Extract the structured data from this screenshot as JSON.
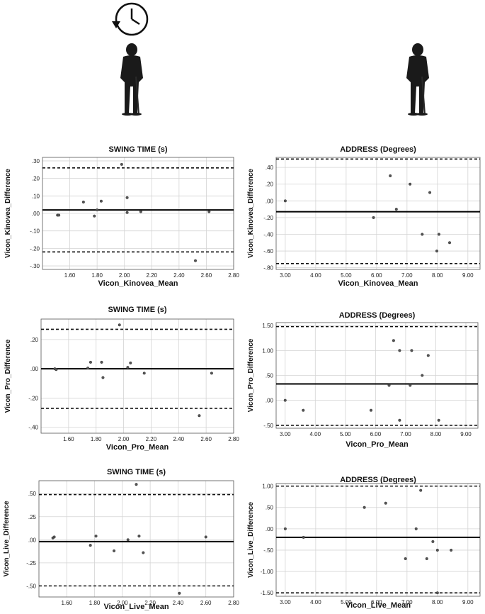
{
  "header": {
    "icons": [
      "clock-rewind-icon",
      "golfer-address-icon",
      "golfer-address-icon"
    ]
  },
  "chart_data": [
    {
      "type": "scatter",
      "title": "SWING TIME (s)",
      "xlabel": "Vicon_Kinovea_Mean",
      "ylabel": "Vicon_Kinovea_Difference",
      "xlim": [
        1.4,
        2.8
      ],
      "ylim": [
        -0.32,
        0.32
      ],
      "xticks": [
        1.6,
        1.8,
        2.0,
        2.2,
        2.4,
        2.6,
        2.8
      ],
      "xtick_labels": [
        "1.60",
        "1.80",
        "2.00",
        "2.20",
        "2.40",
        "2.60",
        "2.80"
      ],
      "yticks": [
        0.3,
        0.2,
        0.1,
        0.0,
        -0.1,
        -0.2,
        -0.3
      ],
      "ytick_labels": [
        ".30",
        ".20",
        ".10",
        ".00",
        "-.10",
        "-.20",
        "-.30"
      ],
      "grid": true,
      "points": [
        [
          1.51,
          -0.01
        ],
        [
          1.52,
          -0.01
        ],
        [
          1.7,
          0.065
        ],
        [
          1.78,
          -0.015
        ],
        [
          1.8,
          0.02
        ],
        [
          1.83,
          0.07
        ],
        [
          1.98,
          0.28
        ],
        [
          2.02,
          0.09
        ],
        [
          2.02,
          0.005
        ],
        [
          2.12,
          0.01
        ],
        [
          2.52,
          -0.27
        ],
        [
          2.62,
          0.01
        ]
      ],
      "mean_line": 0.02,
      "limits": [
        0.26,
        -0.22
      ]
    },
    {
      "type": "scatter",
      "title": "ADDRESS (Degrees)",
      "xlabel": "Vicon_Kinovea_Mean",
      "ylabel": "Vicon_Kinovea_Difference",
      "xlim": [
        2.7,
        9.4
      ],
      "ylim": [
        -0.82,
        0.52
      ],
      "xticks": [
        3,
        4,
        5,
        6,
        7,
        8,
        9
      ],
      "xtick_labels": [
        "3.00",
        "4.00",
        "5.00",
        "6.00",
        "7.00",
        "8.00",
        "9.00"
      ],
      "yticks": [
        0.4,
        0.2,
        0.0,
        -0.2,
        -0.4,
        -0.6,
        -0.8
      ],
      "ytick_labels": [
        ".40",
        ".20",
        ".00",
        "-.20",
        "-.40",
        "-.60",
        "-.80"
      ],
      "grid": true,
      "points": [
        [
          3.0,
          0.0
        ],
        [
          5.9,
          -0.2
        ],
        [
          6.45,
          0.3
        ],
        [
          6.65,
          -0.1
        ],
        [
          7.1,
          0.2
        ],
        [
          7.5,
          -0.4
        ],
        [
          7.75,
          0.1
        ],
        [
          7.98,
          -0.6
        ],
        [
          8.05,
          -0.4
        ],
        [
          8.4,
          -0.5
        ]
      ],
      "mean_line": -0.13,
      "limits": [
        0.5,
        -0.75
      ]
    },
    {
      "type": "scatter",
      "title": "SWING TIME (s)",
      "xlabel": "Vicon_Pro_Mean",
      "ylabel": "Vicon_Pro_Difference",
      "xlim": [
        1.4,
        2.8
      ],
      "ylim": [
        -0.44,
        0.34
      ],
      "xticks": [
        1.6,
        1.8,
        2.0,
        2.2,
        2.4,
        2.6,
        2.8
      ],
      "xtick_labels": [
        "1.60",
        "1.80",
        "2.00",
        "2.20",
        "2.40",
        "2.60",
        "2.80"
      ],
      "yticks": [
        0.2,
        0.0,
        -0.2,
        -0.4
      ],
      "ytick_labels": [
        ".20",
        ".00",
        "-.20",
        "-.40"
      ],
      "grid": true,
      "points": [
        [
          1.5,
          0.0
        ],
        [
          1.51,
          -0.005
        ],
        [
          1.74,
          0.005
        ],
        [
          1.76,
          0.045
        ],
        [
          1.84,
          0.045
        ],
        [
          1.85,
          -0.06
        ],
        [
          1.97,
          0.3
        ],
        [
          2.03,
          0.01
        ],
        [
          2.05,
          0.04
        ],
        [
          2.15,
          -0.03
        ],
        [
          2.55,
          -0.32
        ],
        [
          2.64,
          -0.03
        ]
      ],
      "mean_line": 0.0,
      "limits": [
        0.27,
        -0.27
      ]
    },
    {
      "type": "scatter",
      "title": "ADDRESS (Degrees)",
      "xlabel": "Vicon_Pro_Mean",
      "ylabel": "Vicon_Pro_Difference",
      "xlim": [
        2.7,
        9.4
      ],
      "ylim": [
        -0.56,
        1.56
      ],
      "xticks": [
        3,
        4,
        5,
        6,
        7,
        8,
        9
      ],
      "xtick_labels": [
        "3.00",
        "4.00",
        "5.00",
        "6.00",
        "7.00",
        "8.00",
        "9.00"
      ],
      "yticks": [
        1.5,
        1.0,
        0.5,
        0.0,
        -0.5
      ],
      "ytick_labels": [
        "1.50",
        "1.00",
        ".50",
        ".00",
        "-.50"
      ],
      "grid": true,
      "points": [
        [
          3.0,
          0.0
        ],
        [
          3.6,
          -0.2
        ],
        [
          5.85,
          -0.2
        ],
        [
          6.45,
          0.3
        ],
        [
          6.6,
          1.2
        ],
        [
          6.8,
          1.0
        ],
        [
          6.8,
          -0.4
        ],
        [
          7.15,
          0.3
        ],
        [
          7.2,
          1.0
        ],
        [
          7.55,
          0.5
        ],
        [
          7.75,
          0.9
        ],
        [
          8.1,
          -0.4
        ]
      ],
      "mean_line": 0.33,
      "limits": [
        1.48,
        -0.5
      ]
    },
    {
      "type": "scatter",
      "title": "SWING TIME (s)",
      "xlabel": "Vicon_Live_Mean",
      "ylabel": "Vicon_Live_Difference",
      "xlim": [
        1.4,
        2.8
      ],
      "ylim": [
        -0.62,
        0.64
      ],
      "xticks": [
        1.6,
        1.8,
        2.0,
        2.2,
        2.4,
        2.6,
        2.8
      ],
      "xtick_labels": [
        "1.60",
        "1.80",
        "2.00",
        "2.20",
        "2.40",
        "2.60",
        "2.80"
      ],
      "yticks": [
        0.5,
        0.25,
        0.0,
        -0.25,
        -0.5
      ],
      "ytick_labels": [
        ".50",
        ".25",
        ".00",
        "-.25",
        "-.50"
      ],
      "grid": true,
      "points": [
        [
          1.5,
          0.02
        ],
        [
          1.51,
          0.03
        ],
        [
          1.77,
          -0.06
        ],
        [
          1.81,
          0.04
        ],
        [
          1.94,
          -0.12
        ],
        [
          2.04,
          0.0
        ],
        [
          2.1,
          0.6
        ],
        [
          2.12,
          0.04
        ],
        [
          2.15,
          -0.14
        ],
        [
          2.41,
          -0.58
        ],
        [
          2.6,
          0.03
        ]
      ],
      "mean_line": -0.02,
      "limits": [
        0.49,
        -0.5
      ]
    },
    {
      "type": "scatter",
      "title": "ADDRESS (Degrees)",
      "xlabel": "Vicon_Live_Mean",
      "ylabel": "Vicon_Live_Difference",
      "xlim": [
        2.7,
        9.4
      ],
      "ylim": [
        -1.58,
        1.06
      ],
      "xticks": [
        3,
        4,
        5,
        6,
        7,
        8,
        9
      ],
      "xtick_labels": [
        "3.00",
        "4.00",
        "5.00",
        "6.00",
        "7.00",
        "8.00",
        "9.00"
      ],
      "yticks": [
        1.0,
        0.5,
        0.0,
        -0.5,
        -1.0,
        -1.5
      ],
      "ytick_labels": [
        "1.00",
        ".50",
        ".00",
        "-.50",
        "-1.00",
        "-1.50"
      ],
      "grid": true,
      "points": [
        [
          3.0,
          0.0
        ],
        [
          3.6,
          -0.2
        ],
        [
          5.6,
          0.5
        ],
        [
          6.3,
          0.6
        ],
        [
          6.95,
          -0.7
        ],
        [
          7.3,
          0.0
        ],
        [
          7.45,
          0.9
        ],
        [
          7.65,
          -0.7
        ],
        [
          7.85,
          -0.3
        ],
        [
          8.0,
          -0.5
        ],
        [
          8.45,
          -0.5
        ],
        [
          8.0,
          -1.5
        ]
      ],
      "mean_line": -0.2,
      "limits": [
        1.0,
        -1.5
      ]
    }
  ]
}
